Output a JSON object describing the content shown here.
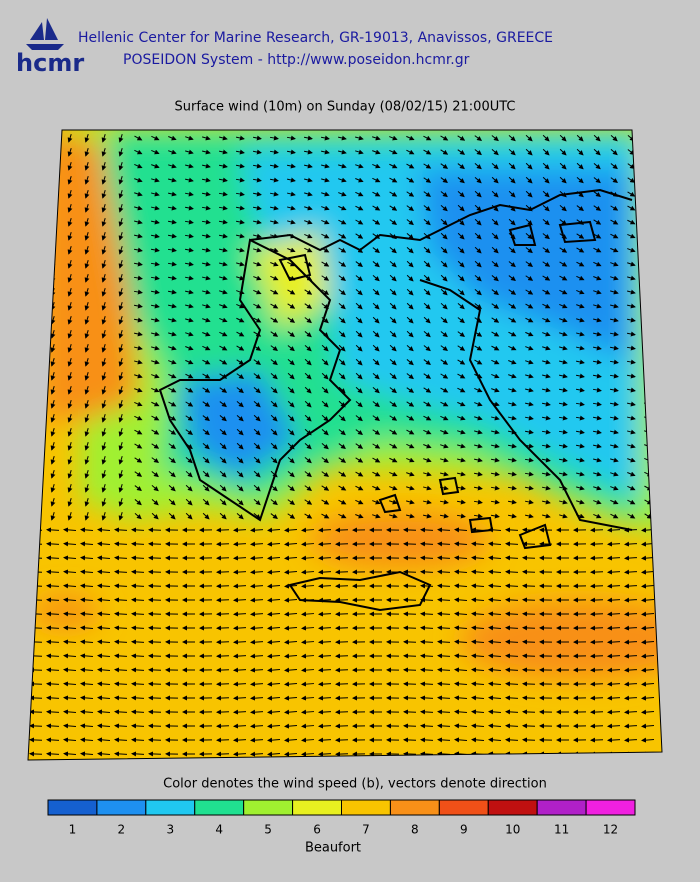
{
  "header": {
    "organization": "Hellenic Center for Marine Research, GR-19013, Anavissos, GREECE",
    "system": "POSEIDON System - http://www.poseidon.hcmr.gr",
    "logo": "hcmr"
  },
  "map": {
    "title": "Surface wind (10m) on Sunday (08/02/15) 21:00UTC"
  },
  "legend": {
    "caption": "Color denotes the wind speed (b), vectors denote direction",
    "unit": "Beaufort",
    "levels": [
      {
        "label": "1",
        "color": "#1560d0"
      },
      {
        "label": "2",
        "color": "#1e90f0"
      },
      {
        "label": "3",
        "color": "#20c8f0"
      },
      {
        "label": "4",
        "color": "#20e090"
      },
      {
        "label": "5",
        "color": "#a0f030"
      },
      {
        "label": "6",
        "color": "#e8f020"
      },
      {
        "label": "7",
        "color": "#f8c400"
      },
      {
        "label": "8",
        "color": "#f89018"
      },
      {
        "label": "9",
        "color": "#f05018"
      },
      {
        "label": "10",
        "color": "#c01010"
      },
      {
        "label": "11",
        "color": "#b020c8"
      },
      {
        "label": "12",
        "color": "#f020e0"
      }
    ]
  }
}
